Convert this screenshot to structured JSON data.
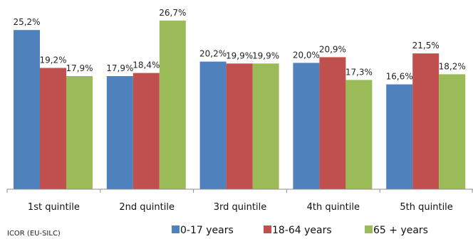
{
  "chart_data": {
    "type": "bar",
    "categories": [
      "1st quintile",
      "2nd quintile",
      "3rd quintile",
      "4th quintile",
      "5th quintile"
    ],
    "series": [
      {
        "name": "0-17 years",
        "color": "#4f81bd",
        "values": [
          25.2,
          17.9,
          20.2,
          20.0,
          16.6
        ],
        "labels": [
          "25,2%",
          "17,9%",
          "20,2%",
          "20,0%",
          "16,6%"
        ]
      },
      {
        "name": "18-64 years",
        "color": "#c0504d",
        "values": [
          19.2,
          18.4,
          19.9,
          20.9,
          21.5
        ],
        "labels": [
          "19,2%",
          "18,4%",
          "19,9%",
          "20,9%",
          "21,5%"
        ]
      },
      {
        "name": "65 + years",
        "color": "#9bbb59",
        "values": [
          17.9,
          26.7,
          19.9,
          17.3,
          18.2
        ],
        "labels": [
          "17,9%",
          "26,7%",
          "19,9%",
          "17,3%",
          "18,2%"
        ]
      }
    ],
    "ylim": [
      0,
      30
    ],
    "legend": "bottom",
    "grid": false
  },
  "source": "ICOR (EU-SILC)"
}
